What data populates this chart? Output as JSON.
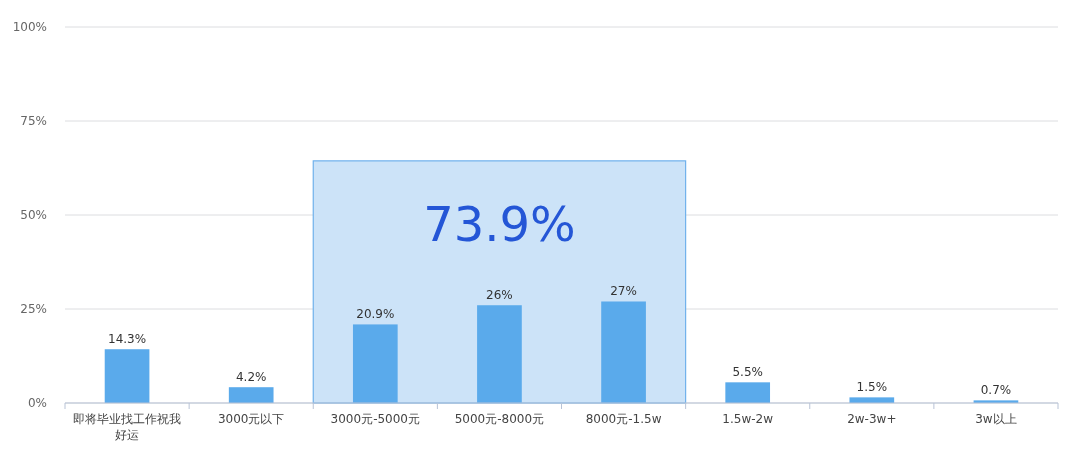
{
  "chart_data": {
    "type": "bar",
    "categories": [
      "即将毕业找工作祝我好运",
      "3000元以下",
      "3000元-5000元",
      "5000元-8000元",
      "8000元-1.5w",
      "1.5w-2w",
      "2w-3w+",
      "3w以上"
    ],
    "values": [
      14.3,
      4.2,
      20.9,
      26,
      27,
      5.5,
      1.5,
      0.7
    ],
    "color": "#5aaaeb",
    "value_labels": [
      "14.3%",
      "4.2%",
      "20.9%",
      "26%",
      "27%",
      "5.5%",
      "1.5%",
      "0.7%"
    ],
    "ylim": [
      0,
      100
    ],
    "yticks": [
      {
        "value": 0,
        "label": "0%"
      },
      {
        "value": 25,
        "label": "25%"
      },
      {
        "value": 50,
        "label": "50%"
      },
      {
        "value": 75,
        "label": "75%"
      },
      {
        "value": 100,
        "label": "100%"
      }
    ],
    "grid": "y",
    "bands": [
      {
        "axis": "x",
        "from": "3000元-5000元",
        "to": "8000元-1.5w",
        "label": "73.9%",
        "color": "#cce3f8"
      }
    ]
  }
}
